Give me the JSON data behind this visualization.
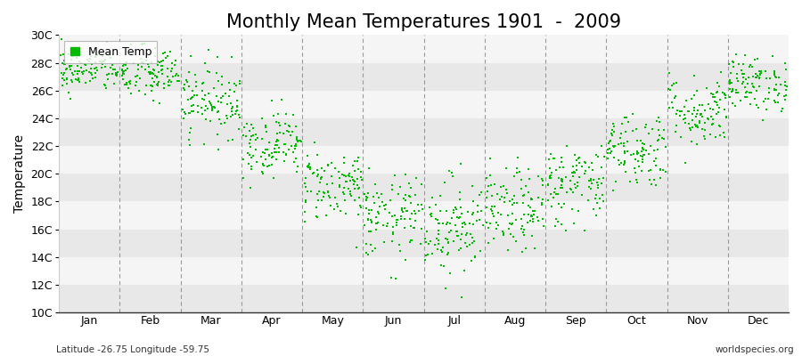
{
  "title": "Monthly Mean Temperatures 1901  -  2009",
  "ylabel": "Temperature",
  "xlabel_labels": [
    "Jan",
    "Feb",
    "Mar",
    "Apr",
    "May",
    "Jun",
    "Jul",
    "Aug",
    "Sep",
    "Oct",
    "Nov",
    "Dec"
  ],
  "ylim": [
    10,
    30
  ],
  "ytick_labels": [
    "10C",
    "12C",
    "14C",
    "16C",
    "18C",
    "20C",
    "22C",
    "24C",
    "26C",
    "28C",
    "30C"
  ],
  "ytick_values": [
    10,
    12,
    14,
    16,
    18,
    20,
    22,
    24,
    26,
    28,
    30
  ],
  "dot_color": "#00bb00",
  "background_color": "#ffffff",
  "stripe_color_light": "#f5f5f5",
  "stripe_color_dark": "#e8e8e8",
  "title_fontsize": 15,
  "axis_fontsize": 10,
  "tick_fontsize": 9,
  "legend_label": "Mean Temp",
  "bottom_left_text": "Latitude -26.75 Longitude -59.75",
  "bottom_right_text": "worldspecies.org",
  "n_years": 109,
  "monthly_means": [
    27.5,
    27.2,
    25.3,
    22.2,
    19.2,
    16.8,
    16.3,
    17.3,
    19.3,
    21.8,
    24.5,
    26.5
  ],
  "monthly_stds": [
    0.8,
    1.0,
    1.3,
    1.2,
    1.3,
    1.5,
    1.8,
    1.5,
    1.5,
    1.4,
    1.3,
    1.0
  ]
}
